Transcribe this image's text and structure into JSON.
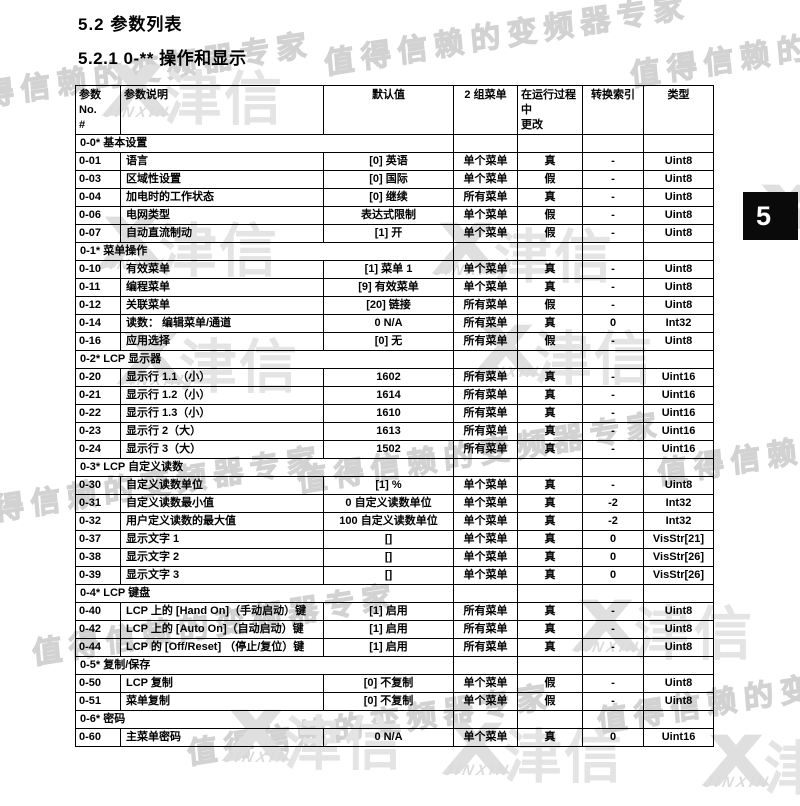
{
  "page": {
    "section_title": "5.2  参数列表",
    "subsection_title": "5.2.1 0-** 操作和显示",
    "side_tab_label": "5"
  },
  "watermark": {
    "slogan": "值得信赖的变频器专家",
    "logo_text": "津信",
    "logo_caption": "JINXIN"
  },
  "table": {
    "headers": [
      {
        "lines": [
          "参数 No.",
          "#"
        ]
      },
      {
        "lines": [
          "参数说明"
        ]
      },
      {
        "lines": [
          "默认值"
        ]
      },
      {
        "lines": [
          "2 组菜单"
        ]
      },
      {
        "lines": [
          "在运行过程中",
          "更改"
        ]
      },
      {
        "lines": [
          "转换索引"
        ]
      },
      {
        "lines": [
          "类型"
        ]
      }
    ],
    "rows": [
      {
        "section": "0-0* 基本设置"
      },
      {
        "no": "0-01",
        "desc": "语言",
        "default": "[0] 英语",
        "menus": "单个菜单",
        "runtime_change": "真",
        "conversion_index": "-",
        "type": "Uint8"
      },
      {
        "no": "0-03",
        "desc": "区域性设置",
        "default": "[0] 国际",
        "menus": "单个菜单",
        "runtime_change": "假",
        "conversion_index": "-",
        "type": "Uint8"
      },
      {
        "no": "0-04",
        "desc": "加电时的工作状态",
        "default": "[0] 继续",
        "menus": "所有菜单",
        "runtime_change": "真",
        "conversion_index": "-",
        "type": "Uint8"
      },
      {
        "no": "0-06",
        "desc": "电网类型",
        "default": "表达式限制",
        "menus": "单个菜单",
        "runtime_change": "假",
        "conversion_index": "-",
        "type": "Uint8"
      },
      {
        "no": "0-07",
        "desc": "自动直流制动",
        "default": "[1] 开",
        "menus": "单个菜单",
        "runtime_change": "假",
        "conversion_index": "-",
        "type": "Uint8"
      },
      {
        "section": "0-1* 菜单操作"
      },
      {
        "no": "0-10",
        "desc": "有效菜单",
        "default": "[1] 菜单 1",
        "menus": "单个菜单",
        "runtime_change": "真",
        "conversion_index": "-",
        "type": "Uint8"
      },
      {
        "no": "0-11",
        "desc": "编程菜单",
        "default": "[9] 有效菜单",
        "menus": "单个菜单",
        "runtime_change": "真",
        "conversion_index": "-",
        "type": "Uint8"
      },
      {
        "no": "0-12",
        "desc": "关联菜单",
        "default": "[20] 链接",
        "menus": "所有菜单",
        "runtime_change": "假",
        "conversion_index": "-",
        "type": "Uint8"
      },
      {
        "no": "0-14",
        "desc": "读数： 编辑菜单/通道",
        "default": "0 N/A",
        "menus": "所有菜单",
        "runtime_change": "真",
        "conversion_index": "0",
        "type": "Int32"
      },
      {
        "no": "0-16",
        "desc": "应用选择",
        "default": "[0] 无",
        "menus": "所有菜单",
        "runtime_change": "假",
        "conversion_index": "-",
        "type": "Uint8"
      },
      {
        "section": "0-2* LCP 显示器"
      },
      {
        "no": "0-20",
        "desc": "显示行 1.1（小）",
        "default": "1602",
        "menus": "所有菜单",
        "runtime_change": "真",
        "conversion_index": "-",
        "type": "Uint16"
      },
      {
        "no": "0-21",
        "desc": "显示行 1.2（小）",
        "default": "1614",
        "menus": "所有菜单",
        "runtime_change": "真",
        "conversion_index": "-",
        "type": "Uint16"
      },
      {
        "no": "0-22",
        "desc": "显示行 1.3（小）",
        "default": "1610",
        "menus": "所有菜单",
        "runtime_change": "真",
        "conversion_index": "-",
        "type": "Uint16"
      },
      {
        "no": "0-23",
        "desc": "显示行 2（大）",
        "default": "1613",
        "menus": "所有菜单",
        "runtime_change": "真",
        "conversion_index": "-",
        "type": "Uint16"
      },
      {
        "no": "0-24",
        "desc": "显示行 3（大）",
        "default": "1502",
        "menus": "所有菜单",
        "runtime_change": "真",
        "conversion_index": "-",
        "type": "Uint16"
      },
      {
        "section": "0-3* LCP 自定义读数"
      },
      {
        "no": "0-30",
        "desc": "自定义读数单位",
        "default": "[1] %",
        "menus": "单个菜单",
        "runtime_change": "真",
        "conversion_index": "-",
        "type": "Uint8"
      },
      {
        "no": "0-31",
        "desc": "自定义读数最小值",
        "default": "0 自定义读数单位",
        "menus": "单个菜单",
        "runtime_change": "真",
        "conversion_index": "-2",
        "type": "Int32"
      },
      {
        "no": "0-32",
        "desc": "用户定义读数的最大值",
        "default": "100 自定义读数单位",
        "menus": "单个菜单",
        "runtime_change": "真",
        "conversion_index": "-2",
        "type": "Int32"
      },
      {
        "no": "0-37",
        "desc": "显示文字 1",
        "default": "[]",
        "menus": "单个菜单",
        "runtime_change": "真",
        "conversion_index": "0",
        "type": "VisStr[21]"
      },
      {
        "no": "0-38",
        "desc": "显示文字 2",
        "default": "[]",
        "menus": "单个菜单",
        "runtime_change": "真",
        "conversion_index": "0",
        "type": "VisStr[26]"
      },
      {
        "no": "0-39",
        "desc": "显示文字 3",
        "default": "[]",
        "menus": "单个菜单",
        "runtime_change": "真",
        "conversion_index": "0",
        "type": "VisStr[26]"
      },
      {
        "section": "0-4* LCP 键盘"
      },
      {
        "no": "0-40",
        "desc": "LCP 上的 [Hand On]（手动启动）键",
        "default": "[1] 启用",
        "menus": "所有菜单",
        "runtime_change": "真",
        "conversion_index": "-",
        "type": "Uint8"
      },
      {
        "no": "0-42",
        "desc": "LCP 上的 [Auto On]（自动启动）键",
        "default": "[1] 启用",
        "menus": "所有菜单",
        "runtime_change": "真",
        "conversion_index": "-",
        "type": "Uint8"
      },
      {
        "no": "0-44",
        "desc": "LCP 的 [Off/Reset] （停止/复位）键",
        "default": "[1] 启用",
        "menus": "所有菜单",
        "runtime_change": "真",
        "conversion_index": "-",
        "type": "Uint8"
      },
      {
        "section": "0-5* 复制/保存"
      },
      {
        "no": "0-50",
        "desc": "LCP 复制",
        "default": "[0] 不复制",
        "menus": "单个菜单",
        "runtime_change": "假",
        "conversion_index": "-",
        "type": "Uint8"
      },
      {
        "no": "0-51",
        "desc": "菜单复制",
        "default": "[0] 不复制",
        "menus": "单个菜单",
        "runtime_change": "假",
        "conversion_index": "-",
        "type": "Uint8"
      },
      {
        "section": "0-6* 密码"
      },
      {
        "no": "0-60",
        "desc": "主菜单密码",
        "default": "0 N/A",
        "menus": "单个菜单",
        "runtime_change": "真",
        "conversion_index": "0",
        "type": "Uint16"
      }
    ]
  }
}
